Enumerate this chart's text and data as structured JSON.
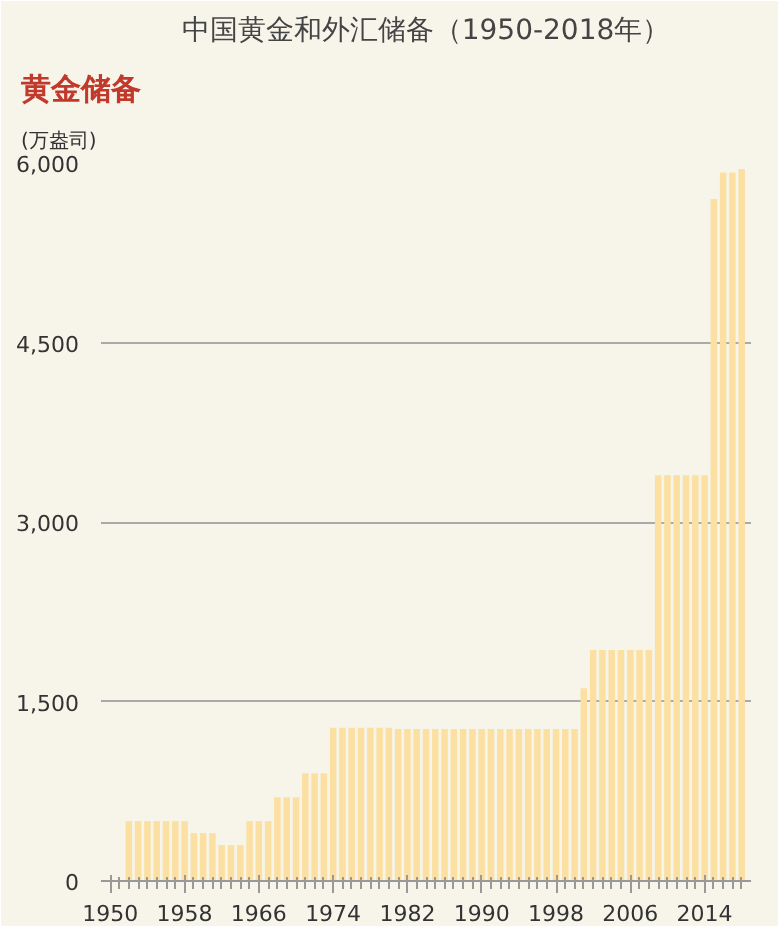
{
  "chart_data": {
    "type": "bar",
    "title": "中国黄金和外汇储备（1950-2018年）",
    "subtitle": "黄金储备",
    "ylabel": "(万盎司)",
    "x": [
      1950,
      1951,
      1952,
      1953,
      1954,
      1955,
      1956,
      1957,
      1958,
      1959,
      1960,
      1961,
      1962,
      1963,
      1964,
      1965,
      1966,
      1967,
      1968,
      1969,
      1970,
      1971,
      1972,
      1973,
      1974,
      1975,
      1976,
      1977,
      1978,
      1979,
      1980,
      1981,
      1982,
      1983,
      1984,
      1985,
      1986,
      1987,
      1988,
      1989,
      1990,
      1991,
      1992,
      1993,
      1994,
      1995,
      1996,
      1997,
      1998,
      1999,
      2000,
      2001,
      2002,
      2003,
      2004,
      2005,
      2006,
      2007,
      2008,
      2009,
      2010,
      2011,
      2012,
      2013,
      2014,
      2015,
      2016,
      2017,
      2018
    ],
    "values": [
      0,
      0,
      500,
      500,
      500,
      500,
      500,
      500,
      500,
      400,
      400,
      400,
      300,
      300,
      300,
      500,
      500,
      500,
      700,
      700,
      700,
      900,
      900,
      900,
      1280,
      1280,
      1280,
      1280,
      1280,
      1280,
      1280,
      1270,
      1270,
      1270,
      1270,
      1270,
      1270,
      1270,
      1270,
      1270,
      1270,
      1270,
      1270,
      1270,
      1270,
      1270,
      1270,
      1270,
      1270,
      1270,
      1270,
      1610,
      1930,
      1930,
      1930,
      1930,
      1930,
      1930,
      1930,
      3390,
      3390,
      3390,
      3390,
      3390,
      3390,
      5700,
      5920,
      5920,
      5950
    ],
    "color": "#fbe0a2",
    "xlim": [
      1949,
      2019
    ],
    "xticks": [
      1950,
      1958,
      1966,
      1974,
      1982,
      1990,
      1998,
      2006,
      2014
    ],
    "ylim": [
      0,
      6000
    ],
    "yticks": [
      0,
      {
        "value": 1500,
        "label": "1,500"
      },
      {
        "value": 3000,
        "label": "3,000"
      },
      {
        "value": 4500,
        "label": "4,500"
      },
      {
        "value": 6000,
        "label": "6,000"
      }
    ],
    "grid": "y"
  }
}
